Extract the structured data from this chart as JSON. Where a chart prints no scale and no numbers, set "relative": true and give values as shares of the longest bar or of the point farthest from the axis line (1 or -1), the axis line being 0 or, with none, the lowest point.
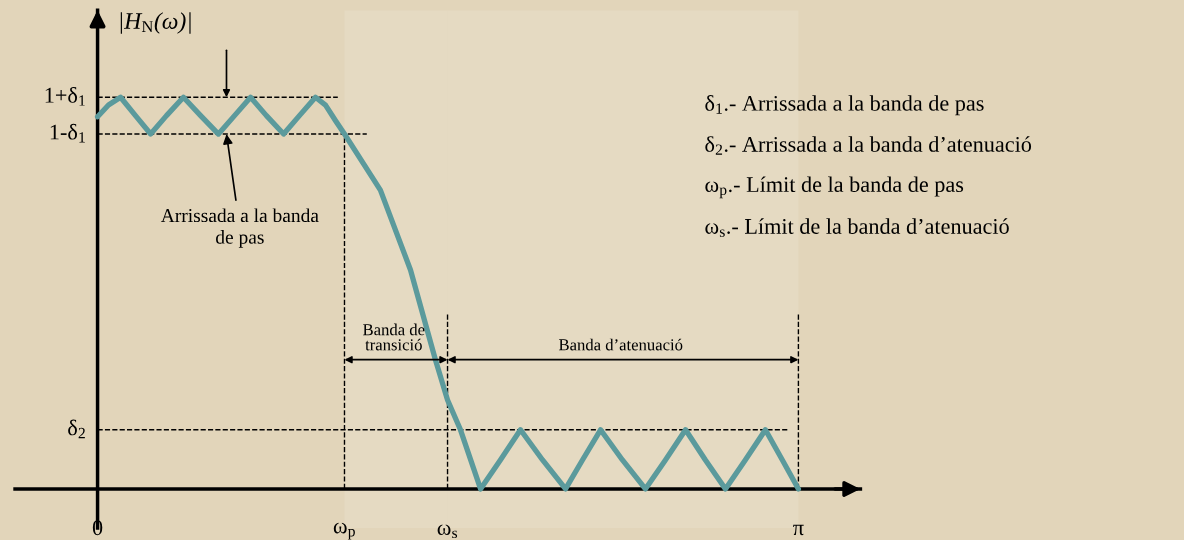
{
  "chart_data": {
    "type": "line",
    "relative": true,
    "ylabel": "|H$_{N}$(ω)|",
    "x": [
      0,
      0.049,
      0.103,
      0.17,
      0.238,
      0.309,
      0.385,
      0.462,
      0.542,
      0.614,
      0.686,
      0.757,
      0.834,
      0.905,
      0.977,
      1.022,
      1.067,
      1.107,
      1.268,
      1.403,
      1.515,
      1.569,
      1.627,
      1.717,
      1.806,
      1.896,
      1.995,
      2.098,
      2.174,
      2.255,
      2.353,
      2.456,
      2.546,
      2.636,
      2.725,
      2.815,
      2.904,
      2.994,
      3.07,
      3.142
    ],
    "series": [
      {
        "color": "#5b9a9c",
        "values": [
          0.95,
          0.98,
          1.0,
          0.953,
          0.906,
          0.953,
          1.0,
          0.953,
          0.906,
          0.953,
          1.0,
          0.953,
          0.906,
          0.953,
          1.0,
          0.98,
          0.94,
          0.906,
          0.763,
          0.559,
          0.329,
          0.227,
          0.151,
          0,
          0.074,
          0.151,
          0.074,
          0,
          0.074,
          0.151,
          0.074,
          0,
          0.074,
          0.151,
          0.074,
          0,
          0.074,
          0.151,
          0.074,
          0
        ]
      }
    ],
    "xlim": [
      -0.37,
      3.42
    ],
    "xticks": [
      {
        "value": 0,
        "label": "0"
      },
      {
        "value": 1.107,
        "label": "ω$_{p}$"
      },
      {
        "value": 1.569,
        "label": "ω$_{s}$"
      },
      {
        "value": 3.142,
        "label": "π"
      }
    ],
    "ref_lines": [
      {
        "axis": "y",
        "value": 1.0,
        "label": "1+δ$_{1}$",
        "line_style": "dashed",
        "color": "#000000"
      },
      {
        "axis": "y",
        "value": 0.906,
        "label": "1-δ$_{1}$",
        "line_style": "dashed",
        "color": "#000000"
      },
      {
        "axis": "y",
        "value": 0.151,
        "label": "δ$_{2}$",
        "line_style": "dashed",
        "color": "#000000"
      },
      {
        "axis": "x",
        "value": 1.107,
        "line_style": "dashed",
        "color": "#000000"
      },
      {
        "axis": "x",
        "value": 1.569,
        "line_style": "dashed",
        "color": "#000000"
      },
      {
        "axis": "x",
        "value": 3.142,
        "line_style": "dashed",
        "color": "#000000"
      }
    ],
    "bands": [
      {
        "axis": "x",
        "from": 1.107,
        "to": 1.569,
        "label": "Banda de\ntransició"
      },
      {
        "axis": "x",
        "from": 1.569,
        "to": 3.142,
        "label": "Banda d’atenuació"
      }
    ],
    "annotations": [
      {
        "text": "Arrissada a la banda\nde pas",
        "x": 0.578,
        "y": 0.906
      },
      "δ$_{1}$.- Arrissada a la banda de pas",
      "δ$_{2}$.- Arrissada a la banda d’atenuació",
      "ω$_{p}$.- Límit de la banda de pas",
      "ω$_{s}$.- Límit de la banda d’atenuació"
    ],
    "grid": false,
    "marker": "none",
    "line_style": "solid"
  }
}
